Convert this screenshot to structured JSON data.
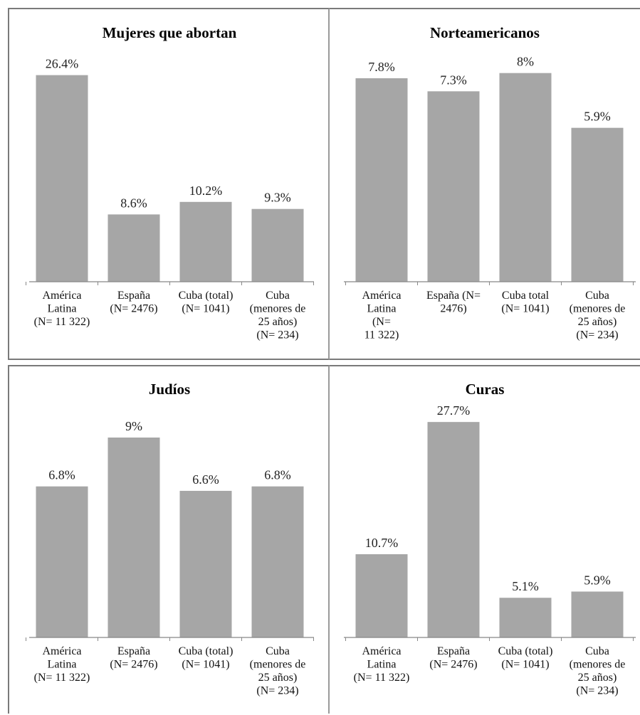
{
  "chart_data": [
    {
      "type": "bar",
      "title": "Mujeres que abortan",
      "categories": [
        [
          "América",
          "Latina",
          "(N= 11 322)"
        ],
        [
          "España",
          "(N= 2476)"
        ],
        [
          "Cuba (total)",
          "(N= 1041)"
        ],
        [
          "Cuba",
          "(menores de",
          "25 años)",
          "(N= 234)"
        ]
      ],
      "values": [
        26.4,
        8.6,
        10.2,
        9.3
      ],
      "labels": [
        "26.4%",
        "8.6%",
        "10.2%",
        "9.3%"
      ],
      "ylim": [
        0,
        30
      ],
      "bar_color": "#a6a6a6",
      "grid": false,
      "legend": "none"
    },
    {
      "type": "bar",
      "title": "Norteamericanos",
      "categories": [
        [
          "América",
          "Latina",
          "(N=",
          "11 322)"
        ],
        [
          "España (N=",
          "2476)"
        ],
        [
          "Cuba total",
          "(N= 1041)"
        ],
        [
          "Cuba",
          "(menores de",
          "25 años)",
          "(N= 234)"
        ]
      ],
      "values": [
        7.8,
        7.3,
        8,
        5.9
      ],
      "labels": [
        "7.8%",
        "7.3%",
        "8%",
        "5.9%"
      ],
      "ylim": [
        0,
        9
      ],
      "bar_color": "#a6a6a6",
      "grid": false,
      "legend": "none"
    },
    {
      "type": "bar",
      "title": "Judíos",
      "categories": [
        [
          "América",
          "Latina",
          "(N= 11 322)"
        ],
        [
          "España",
          "(N= 2476)"
        ],
        [
          "Cuba (total)",
          "(N= 1041)"
        ],
        [
          "Cuba",
          "(menores de",
          "25 años)",
          "(N= 234)"
        ]
      ],
      "values": [
        6.8,
        9,
        6.6,
        6.8
      ],
      "labels": [
        "6.8%",
        "9%",
        "6.6%",
        "6.8%"
      ],
      "ylim": [
        0,
        10
      ],
      "bar_color": "#a6a6a6",
      "grid": false,
      "legend": "none"
    },
    {
      "type": "bar",
      "title": "Curas",
      "categories": [
        [
          "América",
          "Latina",
          "(N= 11 322)"
        ],
        [
          "España",
          "(N= 2476)"
        ],
        [
          "Cuba (total)",
          "(N= 1041)"
        ],
        [
          "Cuba",
          "(menores de",
          "25 años)",
          "(N= 234)"
        ]
      ],
      "values": [
        10.7,
        27.7,
        5.1,
        5.9
      ],
      "labels": [
        "10.7%",
        "27.7%",
        "5.1%",
        "5.9%"
      ],
      "ylim": [
        0,
        30
      ],
      "bar_color": "#a6a6a6",
      "grid": false,
      "legend": "none"
    }
  ]
}
